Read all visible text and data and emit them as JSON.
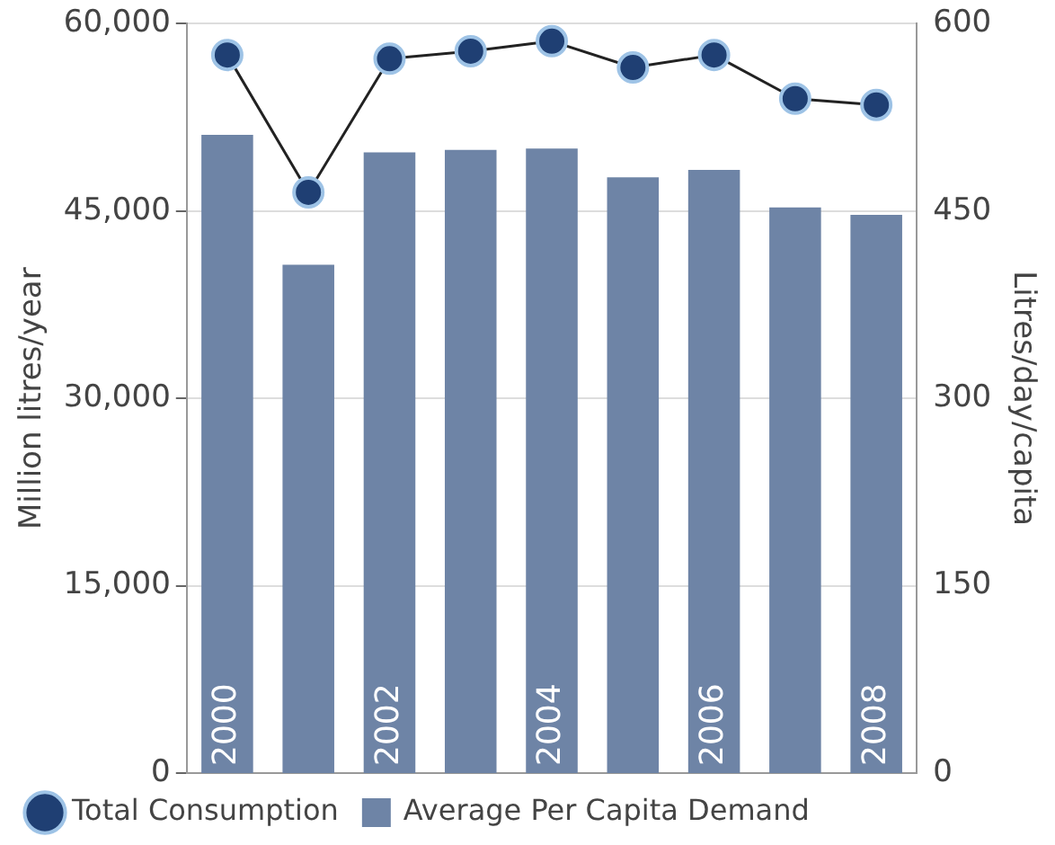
{
  "chart_data": {
    "type": "bar",
    "ylabel": "Million litres/year",
    "y2label": "Litres/day/capita",
    "categories": [
      "2000",
      null,
      "2002",
      null,
      "2004",
      null,
      "2006",
      null,
      "2008"
    ],
    "series": [
      {
        "name": "Total Consumption",
        "type": "line",
        "color": "#1f3f73",
        "marker": "circle",
        "values": [
          57500,
          46500,
          57200,
          57800,
          58600,
          56500,
          57500,
          54000,
          53500
        ]
      },
      {
        "name": "Average Per Capita Demand",
        "axis": "y2",
        "color": "#6e84a6",
        "values": [
          511,
          407,
          497,
          499,
          500,
          477,
          483,
          453,
          447
        ]
      }
    ],
    "ylim": [
      0,
      60000
    ],
    "yticks": [
      0,
      {
        "value": 15000,
        "label": "15,000"
      },
      {
        "value": 30000,
        "label": "30,000"
      },
      {
        "value": 45000,
        "label": "45,000"
      },
      {
        "value": 60000,
        "label": "60,000"
      }
    ],
    "y2lim": [
      0,
      600
    ],
    "y2ticks": [
      0,
      150,
      300,
      450,
      600
    ],
    "grid": "y",
    "legend": "bottom"
  }
}
